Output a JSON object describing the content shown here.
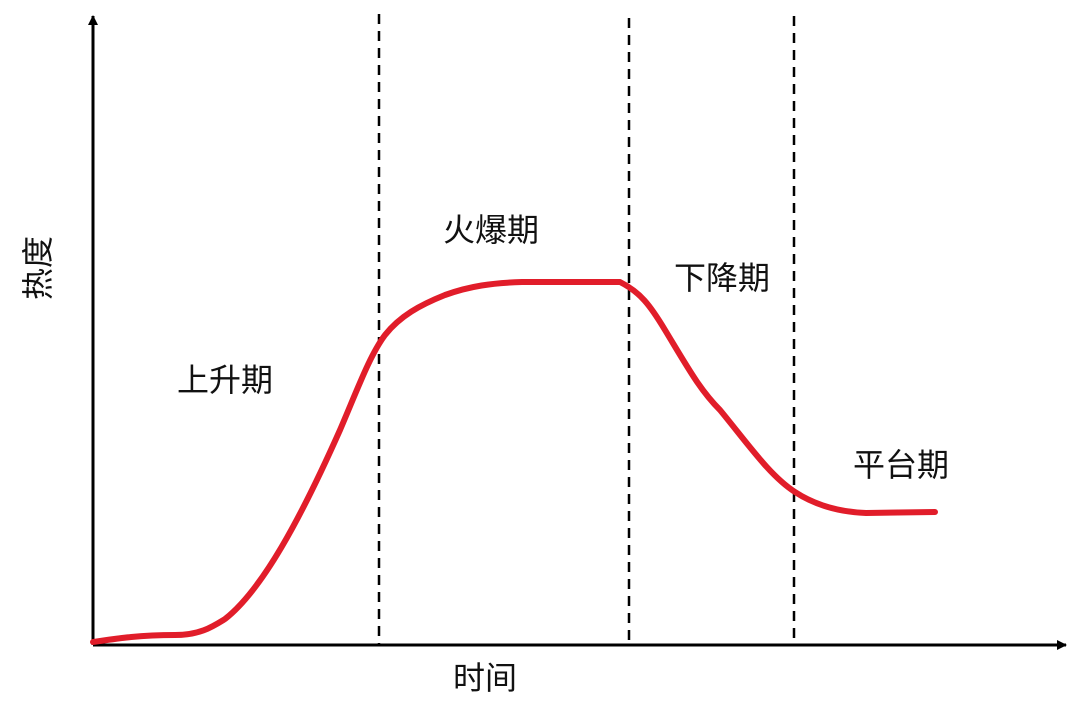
{
  "axes": {
    "y_label": "热度",
    "x_label": "时间"
  },
  "phases": [
    {
      "label": "上升期"
    },
    {
      "label": "火爆期"
    },
    {
      "label": "下降期"
    },
    {
      "label": "平台期"
    }
  ]
}
